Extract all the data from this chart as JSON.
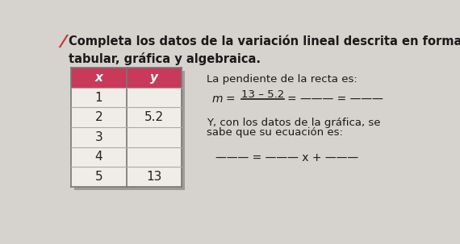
{
  "background_color": "#d6d2cd",
  "title_number_color": "#c0392b",
  "title_text": "Completa los datos de la variación lineal descrita en forma\ntabular, gráfica y algebraica.",
  "title_fontsize": 10.5,
  "table_header_bg": "#c9395a",
  "table_header_text_color": "#ffffff",
  "table_cell_bg": "#f0ece8",
  "table_shadow_color": "#9e9b97",
  "table_x_values": [
    "1",
    "2",
    "3",
    "4",
    "5"
  ],
  "table_y_values": [
    "",
    "5.2",
    "",
    "",
    "13"
  ],
  "right_text_1": "La pendiente de la recta es:",
  "right_text_3a": "Y, con los datos de la gráfica, se",
  "right_text_3b": "sabe que su ecuación es:",
  "font_family": "DejaVu Sans"
}
